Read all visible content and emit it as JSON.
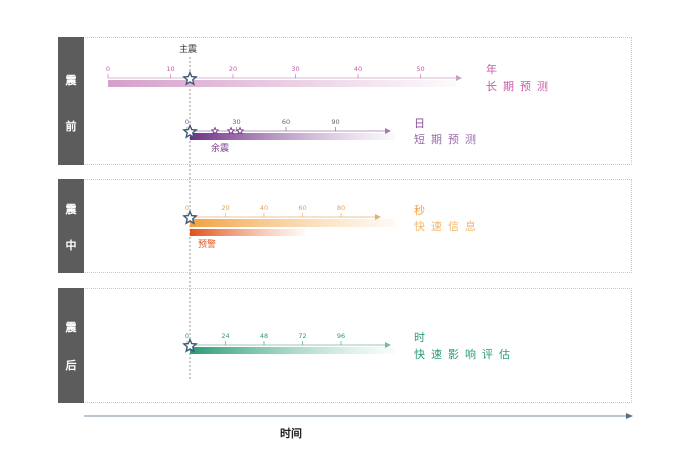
{
  "main_shock_label": "主震",
  "aftershock_label": "余震",
  "warning_label": "预警",
  "time_axis_label": "时间",
  "stages": [
    {
      "chars": [
        "震",
        "前"
      ]
    },
    {
      "chars": [
        "震",
        "中"
      ]
    },
    {
      "chars": [
        "震",
        "后"
      ]
    }
  ],
  "timelines": [
    {
      "unit": "年",
      "desc": "长期预测",
      "ticks": [
        "0",
        "10",
        "20",
        "30",
        "40",
        "50"
      ],
      "color": "#c85aa8"
    },
    {
      "unit": "日",
      "desc": "短期预测",
      "ticks": [
        "0",
        "30",
        "60",
        "90"
      ],
      "color": "#8a4a9a"
    },
    {
      "unit": "秒",
      "desc": "快速信息",
      "ticks": [
        "0",
        "20",
        "40",
        "60",
        "80"
      ],
      "color": "#f0a040"
    },
    {
      "unit": "时",
      "desc": "快速影响评估",
      "ticks": [
        "0",
        "24",
        "48",
        "72",
        "96"
      ],
      "color": "#2a9a7a"
    }
  ],
  "colors": {
    "years": "#d7a2cc",
    "days": "#7a3a8e",
    "seconds": "#f3a24a",
    "hours": "#2f9c7c",
    "warning": "#e2551c",
    "sidebar": "#5c5c5c",
    "star": "#3e5a78"
  }
}
